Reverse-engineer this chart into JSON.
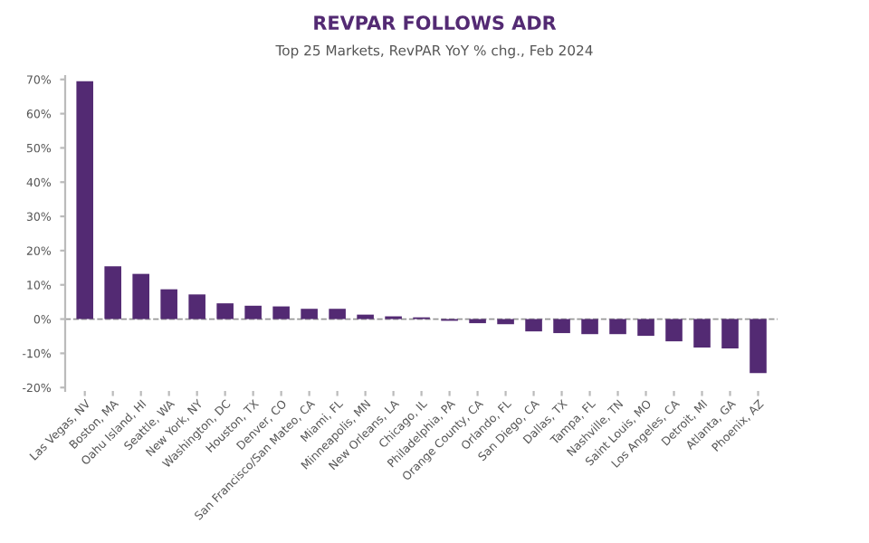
{
  "chart_data": {
    "type": "bar",
    "title": "REVPAR FOLLOWS ADR",
    "subtitle": "Top 25 Markets, RevPAR YoY % chg., Feb 2024",
    "categories": [
      "Las Vegas, NV",
      "Boston, MA",
      "Oahu Island, HI",
      "Seattle, WA",
      "New York, NY",
      "Washington, DC",
      "Houston, TX",
      "Denver, CO",
      "San Francisco/San Mateo, CA",
      "Miami, FL",
      "Minneapolis, MN",
      "New Orleans, LA",
      "Chicago, IL",
      "Philadelphia, PA",
      "Orange County, CA",
      "Orlando, FL",
      "San Diego, CA",
      "Dallas, TX",
      "Tampa, FL",
      "Nashville, TN",
      "Saint Louis, MO",
      "Los Angeles, CA",
      "Detroit, MI",
      "Atlanta, GA",
      "Phoenix, AZ"
    ],
    "values": [
      69.5,
      15.4,
      13.2,
      8.7,
      7.2,
      4.6,
      3.9,
      3.7,
      3.0,
      3.0,
      1.3,
      0.8,
      0.5,
      -0.5,
      -1.2,
      -1.5,
      -3.6,
      -4.1,
      -4.4,
      -4.4,
      -4.9,
      -6.5,
      -8.3,
      -8.6,
      -15.8
    ],
    "color": "#532a73",
    "ylim": [
      -21,
      71
    ],
    "yticks": [
      {
        "value": -20,
        "label": "-20%"
      },
      {
        "value": -10,
        "label": "-10%"
      },
      {
        "value": 0,
        "label": "0%"
      },
      {
        "value": 10,
        "label": "10%"
      },
      {
        "value": 20,
        "label": "20%"
      },
      {
        "value": 30,
        "label": "30%"
      },
      {
        "value": 40,
        "label": "40%"
      },
      {
        "value": 50,
        "label": "50%"
      },
      {
        "value": 60,
        "label": "60%"
      },
      {
        "value": 70,
        "label": "70%"
      }
    ],
    "ref_lines": [
      {
        "axis": "y",
        "value": 0,
        "color": "#999999",
        "line_style": "dashed"
      }
    ],
    "grid": false
  }
}
